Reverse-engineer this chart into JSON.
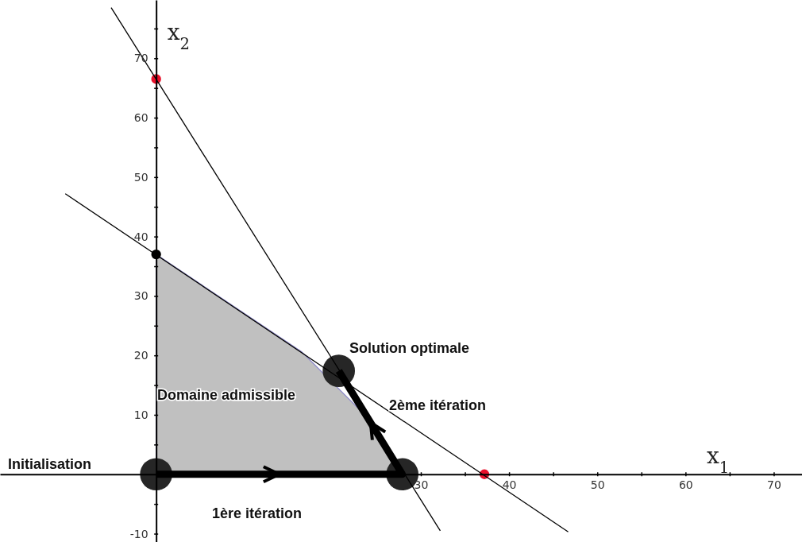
{
  "chart_data": {
    "type": "line",
    "xlabel": "x$_{1}$",
    "ylabel": "x$_{2}$",
    "xlim": [
      -17.7,
      73.2
    ],
    "ylim": [
      -11.4,
      79.8
    ],
    "xticks": [
      {
        "value": 5,
        "label": null
      },
      {
        "value": 10,
        "label": null
      },
      {
        "value": 15,
        "label": null
      },
      {
        "value": 20,
        "label": null
      },
      {
        "value": 25,
        "label": null
      },
      30,
      {
        "value": 35,
        "label": null
      },
      40,
      {
        "value": 45,
        "label": null
      },
      50,
      {
        "value": 55,
        "label": null
      },
      60,
      {
        "value": 65,
        "label": null
      },
      70
    ],
    "yticks": [
      -10,
      {
        "value": -5,
        "label": null
      },
      {
        "value": 5,
        "label": null
      },
      10,
      {
        "value": 15,
        "label": null
      },
      20,
      {
        "value": 25,
        "label": null
      },
      30,
      {
        "value": 35,
        "label": null
      },
      40,
      {
        "value": 45,
        "label": null
      },
      50,
      {
        "value": 55,
        "label": null
      },
      60,
      {
        "value": 65,
        "label": null
      },
      70,
      {
        "value": 75,
        "label": null
      }
    ],
    "series": [
      {
        "type": "area",
        "color": "#c0c0c0",
        "x": [
          0,
          16.5,
          23.7,
          26.8
        ],
        "values": [
          37,
          20.6,
          9.9,
          2.4
        ]
      },
      {
        "color": "#000000",
        "x": [
          -5.1,
          32.2
        ],
        "values": [
          78.5,
          -9.5
        ],
        "marker": "none",
        "line_style": "solid"
      },
      {
        "color": "#000000",
        "x": [
          -10.3,
          46.7
        ],
        "values": [
          47.2,
          -9.7
        ],
        "marker": "none",
        "line_style": "solid"
      },
      {
        "color": "#000000",
        "x": [
          0,
          27.9,
          20.7
        ],
        "values": [
          0,
          0,
          17.4
        ],
        "marker": "none",
        "line_style": "solid"
      },
      {
        "type": "scatter",
        "color": "#262626",
        "x": [
          0,
          27.9,
          20.7
        ],
        "values": [
          0,
          0,
          17.4
        ],
        "marker": "circle"
      },
      {
        "type": "scatter",
        "color": "#e8102a",
        "x": [
          0,
          37.2
        ],
        "values": [
          66.5,
          0
        ],
        "marker": "circle"
      },
      {
        "type": "scatter",
        "color": "#000000",
        "x": [
          0
        ],
        "values": [
          37
        ],
        "marker": "circle"
      }
    ],
    "annotations": [
      "Solution optimale",
      "Domaine admissible",
      "2ème itération",
      "Initialisation",
      "1ère itération"
    ]
  }
}
